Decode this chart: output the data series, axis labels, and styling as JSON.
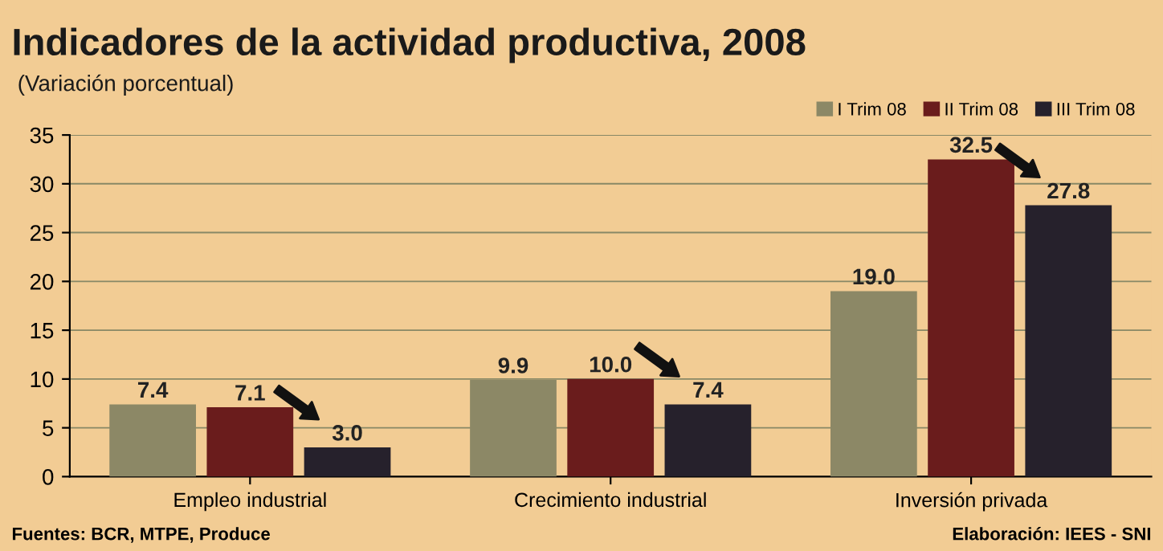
{
  "chart_data": {
    "type": "bar",
    "title": "Indicadores de la actividad productiva, 2008",
    "subtitle": "(Variación porcentual)",
    "categories": [
      "Empleo industrial",
      "Crecimiento industrial",
      "Inversión privada"
    ],
    "series": [
      {
        "name": "I Trim 08",
        "color": "#8c8866",
        "values": [
          7.4,
          9.9,
          19.0
        ],
        "value_labels": [
          "7.4",
          "9.9",
          "19.0"
        ]
      },
      {
        "name": "II Trim 08",
        "color": "#6a1c1c",
        "values": [
          7.1,
          10.0,
          32.5
        ],
        "value_labels": [
          "7.1",
          "10.0",
          "32.5"
        ]
      },
      {
        "name": "III Trim 08",
        "color": "#26212c",
        "values": [
          3.0,
          7.4,
          27.8
        ],
        "value_labels": [
          "3.0",
          "7.4",
          "27.8"
        ]
      }
    ],
    "ylim": [
      0,
      35
    ],
    "yticks": [
      0,
      5,
      10,
      15,
      20,
      25,
      30,
      35
    ],
    "grid": "y",
    "legend": "top right",
    "annotations": [
      "Fuentes: BCR, MTPE, Produce",
      "Elaboración: IEES - SNI"
    ]
  }
}
